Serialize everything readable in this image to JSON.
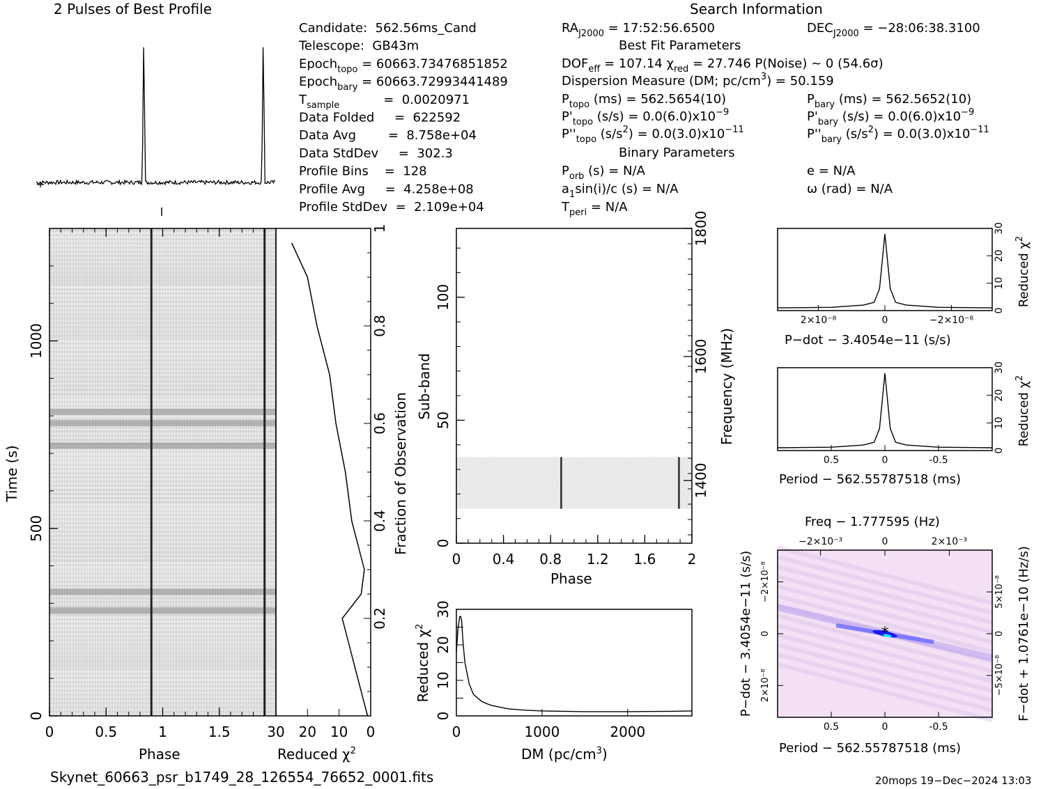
{
  "header": {
    "profile_title": "2 Pulses of Best Profile",
    "search_title": "Search Information"
  },
  "info_col1": [
    {
      "label": "Candidate:  562.56ms_Cand",
      "sub": "",
      "rest": ""
    },
    {
      "label": "Telescope:  GB43m",
      "sub": "",
      "rest": ""
    },
    {
      "label": "Epoch",
      "sub": "topo",
      "rest": " = 60663.73476851852"
    },
    {
      "label": "Epoch",
      "sub": "bary",
      "rest": " = 60663.72993441489"
    },
    {
      "label": "T",
      "sub": "sample",
      "rest": "           =  0.0020971"
    },
    {
      "label": "Data Folded",
      "sub": "",
      "rest": "     =  622592"
    },
    {
      "label": "Data Avg",
      "sub": "",
      "rest": "        =  8.758e+04"
    },
    {
      "label": "Data StdDev",
      "sub": "",
      "rest": "     =  302.3"
    },
    {
      "label": "Profile Bins",
      "sub": "",
      "rest": "    =  128"
    },
    {
      "label": "Profile Avg",
      "sub": "",
      "rest": "     =  4.258e+08"
    },
    {
      "label": "Profile StdDev",
      "sub": "",
      "rest": "  =  2.109e+04"
    }
  ],
  "info_col2": {
    "ra": "RA",
    "ra_sub": "J2000",
    "ra_val": " = 17:52:56.6500",
    "dec": "DEC",
    "dec_sub": "J2000",
    "dec_val": " = −28:06:38.3100",
    "best_fit_header": "Best Fit Parameters",
    "dof": "DOF",
    "dof_sub": "eff",
    "dof_val": " = 107.14  χ",
    "chi_sub": "red",
    "chi_val": " = 27.746  P(Noise) ~ 0    (54.6σ)",
    "dm_line": "Dispersion Measure (DM; pc/cm",
    "dm_val": ") = 50.159",
    "p_topo": "P",
    "p_topo_sub": "topo",
    "p_topo_val": " (ms) =  562.5654(10)",
    "p_bary": "P",
    "p_bary_sub": "bary",
    "p_bary_val": " (ms) =  562.5652(10)",
    "pd_topo": "P'",
    "pd_topo_sub": "topo",
    "pd_topo_val": " (s/s) = 0.0(6.0)x10",
    "pd_bary": "P'",
    "pd_bary_sub": "bary",
    "pd_bary_val": " (s/s) = 0.0(6.0)x10",
    "pd_exp": "−9",
    "pdd_topo": "P''",
    "pdd_topo_sub": "topo",
    "pdd_topo_val": " (s/s",
    "pdd_topo_val2": ") = 0.0(3.0)x10",
    "pdd_bary": "P''",
    "pdd_bary_sub": "bary",
    "pdd_bary_val": " (s/s",
    "pdd_bary_val2": ") = 0.0(3.0)x10",
    "pdd_exp": "−11",
    "binary_header": "Binary Parameters",
    "porb": "P",
    "porb_sub": "orb",
    "porb_val": " (s) = N/A",
    "a1": "a",
    "a1_sub": "1",
    "a1_val": "sin(i)/c (s) = N/A",
    "tperi": "T",
    "tperi_sub": "peri",
    "tperi_val": " = N/A",
    "ecc": "e = N/A",
    "omega": "ω (rad) = N/A"
  },
  "footer": {
    "filename": "Skynet_60663_psr_b1749_28_126554_76652_0001.fits",
    "stamp": "20mops 19−Dec−2024 13:03"
  },
  "colors": {
    "ink": "#000000",
    "pulse_line": "#111111",
    "greyscale_bg": "#dcdcdc",
    "ppdot_bg": "#f4e0f4",
    "ppdot_peak": "#1a1aff",
    "ppdot_center": "#00ffff"
  },
  "chart_data": [
    {
      "type": "line",
      "name": "profile",
      "title": "2 Pulses of Best Profile",
      "x": [
        0.0,
        0.895,
        0.9,
        0.905,
        1.0,
        1.895,
        1.9,
        1.905,
        2.0
      ],
      "y": [
        0.02,
        0.05,
        1.0,
        0.05,
        0.02,
        0.05,
        1.0,
        0.05,
        0.02
      ],
      "pulse_phases": [
        0.9,
        1.9
      ],
      "xlim": [
        0,
        2
      ],
      "ylim": [
        0,
        1
      ]
    },
    {
      "type": "heatmap",
      "name": "time-phase",
      "xlabel": "Phase",
      "ylabel": "Time (s)",
      "xlim": [
        0,
        2
      ],
      "ylim": [
        0,
        1300
      ],
      "x_ticks": [
        0,
        0.5,
        1,
        1.5
      ],
      "y_ticks": [
        0,
        500,
        1000
      ],
      "pulse_phases": [
        0.9,
        1.9
      ],
      "dark_rows_time": [
        780,
        810,
        720,
        330,
        280
      ]
    },
    {
      "type": "line",
      "name": "reduced-chi2-vs-time",
      "xlabel": "Reduced χ",
      "xlabel_sup": "2",
      "ylabel": "Fraction of Observation",
      "xlim": [
        30,
        0
      ],
      "ylim": [
        0,
        1
      ],
      "x_ticks": [
        30,
        20,
        10,
        0
      ],
      "y_ticks": [
        0.2,
        0.4,
        0.6,
        0.8,
        1
      ],
      "y": [
        0.0,
        0.05,
        0.1,
        0.15,
        0.2,
        0.25,
        0.3,
        0.35,
        0.4,
        0.5,
        0.6,
        0.7,
        0.8,
        0.9,
        0.97
      ],
      "x": [
        1,
        3,
        5,
        7,
        9,
        3,
        2,
        4,
        6,
        8,
        11,
        13,
        17,
        20,
        25
      ]
    },
    {
      "type": "heatmap",
      "name": "subband-phase",
      "xlabel": "Phase",
      "ylabel": "Sub-band",
      "ylabel2": "Frequency (MHz)",
      "xlim": [
        0,
        2
      ],
      "ylim": [
        0,
        128
      ],
      "x_ticks": [
        0,
        0.4,
        0.8,
        1.2,
        1.6,
        2
      ],
      "y_ticks": [
        0,
        50,
        100
      ],
      "freq_ticks": [
        1400,
        1600,
        1800
      ],
      "active_subbands": [
        14,
        35
      ],
      "pulse_phases": [
        0.89,
        1.89
      ]
    },
    {
      "type": "line",
      "name": "dm-chi2",
      "xlabel": "DM (pc/cm",
      "xlabel_sup": "3",
      "xlabel_end": ")",
      "ylabel": "Reduced χ",
      "ylabel_sup": "2",
      "xlim": [
        0,
        2750
      ],
      "ylim": [
        0,
        30
      ],
      "x_ticks": [
        0,
        1000,
        2000
      ],
      "y_ticks": [
        0,
        5,
        10,
        15,
        20,
        25,
        30
      ],
      "x": [
        0,
        20,
        40,
        50,
        60,
        80,
        100,
        150,
        200,
        300,
        400,
        600,
        800,
        1000,
        1500,
        2000,
        2500,
        2750
      ],
      "y": [
        18,
        25,
        28,
        28,
        27,
        20,
        15,
        9,
        6,
        4,
        3,
        2,
        1.6,
        1.4,
        1.2,
        1.2,
        1.3,
        1.4
      ]
    },
    {
      "type": "line",
      "name": "pdot-chi2",
      "xlabel": "P−dot − 3.4054e−11 (s/s)",
      "ylabel": "Reduced χ",
      "ylabel_sup": "2",
      "x_tick_labels": [
        "2×10⁻⁸",
        "0",
        "−2×10⁻⁸"
      ],
      "y_ticks": [
        0,
        10,
        20,
        30
      ],
      "xlim": [
        -1,
        1
      ],
      "ylim": [
        0,
        30
      ],
      "x": [
        -1,
        -0.5,
        -0.2,
        -0.1,
        -0.05,
        0,
        0.05,
        0.1,
        0.2,
        0.5,
        1
      ],
      "y": [
        1,
        1.2,
        2,
        3,
        8,
        28,
        8,
        3,
        2,
        1.2,
        1
      ]
    },
    {
      "type": "line",
      "name": "period-chi2",
      "xlabel": "Period − 562.55787518 (ms)",
      "ylabel": "Reduced χ",
      "ylabel_sup": "2",
      "x_ticks": [
        0.5,
        0,
        -0.5
      ],
      "y_ticks": [
        0,
        10,
        20,
        30
      ],
      "xlim": [
        1,
        -1
      ],
      "ylim": [
        0,
        30
      ],
      "x": [
        1,
        0.5,
        0.2,
        0.1,
        0.05,
        0,
        -0.05,
        -0.1,
        -0.2,
        -0.5,
        -1
      ],
      "y": [
        1,
        1.2,
        2,
        3,
        8,
        28,
        8,
        3,
        2,
        1.2,
        1
      ]
    },
    {
      "type": "heatmap",
      "name": "p-pdot",
      "title": "Freq − 1.777595 (Hz)",
      "xlabel": "Period − 562.55787518 (ms)",
      "ylabel": "P−dot − 3.4054e−11 (s/s)",
      "ylabel2": "F−dot + 1.0761e−10 (Hz/s)",
      "x_ticks": [
        0.5,
        0,
        -0.5
      ],
      "top_tick_labels": [
        "−2×10⁻³",
        "0",
        "2×10⁻³"
      ],
      "left_tick_labels": [
        "−2×10⁻⁸",
        "0",
        "2×10⁻⁸"
      ],
      "right_tick_labels": [
        "5×10⁻⁸",
        "0",
        "−5×10⁻⁸"
      ],
      "xlim": [
        1,
        -1
      ],
      "ylim": [
        -1,
        1
      ],
      "best_point": [
        0,
        0
      ]
    }
  ]
}
